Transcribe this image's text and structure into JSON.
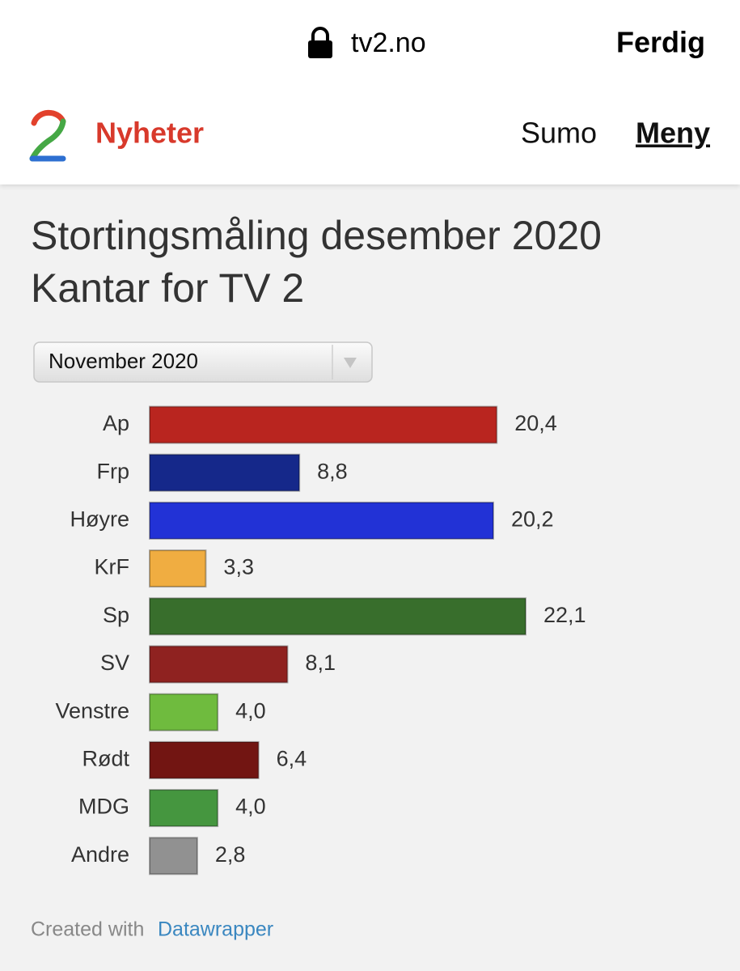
{
  "browser": {
    "url": "tv2.no",
    "done": "Ferdig"
  },
  "header": {
    "brand": "Nyheter",
    "nav": [
      "Sumo",
      "Meny"
    ]
  },
  "chart_data": {
    "type": "bar",
    "orientation": "horizontal",
    "title": "Stortingsmåling desember 2020",
    "subtitle": "Kantar for TV 2",
    "dropdown": "November 2020",
    "categories": [
      "Ap",
      "Frp",
      "Høyre",
      "KrF",
      "Sp",
      "SV",
      "Venstre",
      "Rødt",
      "MDG",
      "Andre"
    ],
    "values": [
      20.4,
      8.8,
      20.2,
      3.3,
      22.1,
      8.1,
      4.0,
      6.4,
      4.0,
      2.8
    ],
    "value_labels": [
      "20,4",
      "8,8",
      "20,2",
      "3,3",
      "22,1",
      "8,1",
      "4,0",
      "6,4",
      "4,0",
      "2,8"
    ],
    "colors": [
      "#b9251f",
      "#15288a",
      "#2232d6",
      "#f0ad41",
      "#386e2c",
      "#8f2220",
      "#6fbb3e",
      "#721512",
      "#45963f",
      "#919191"
    ]
  },
  "footer": {
    "prefix": "Created with",
    "link": "Datawrapper"
  }
}
